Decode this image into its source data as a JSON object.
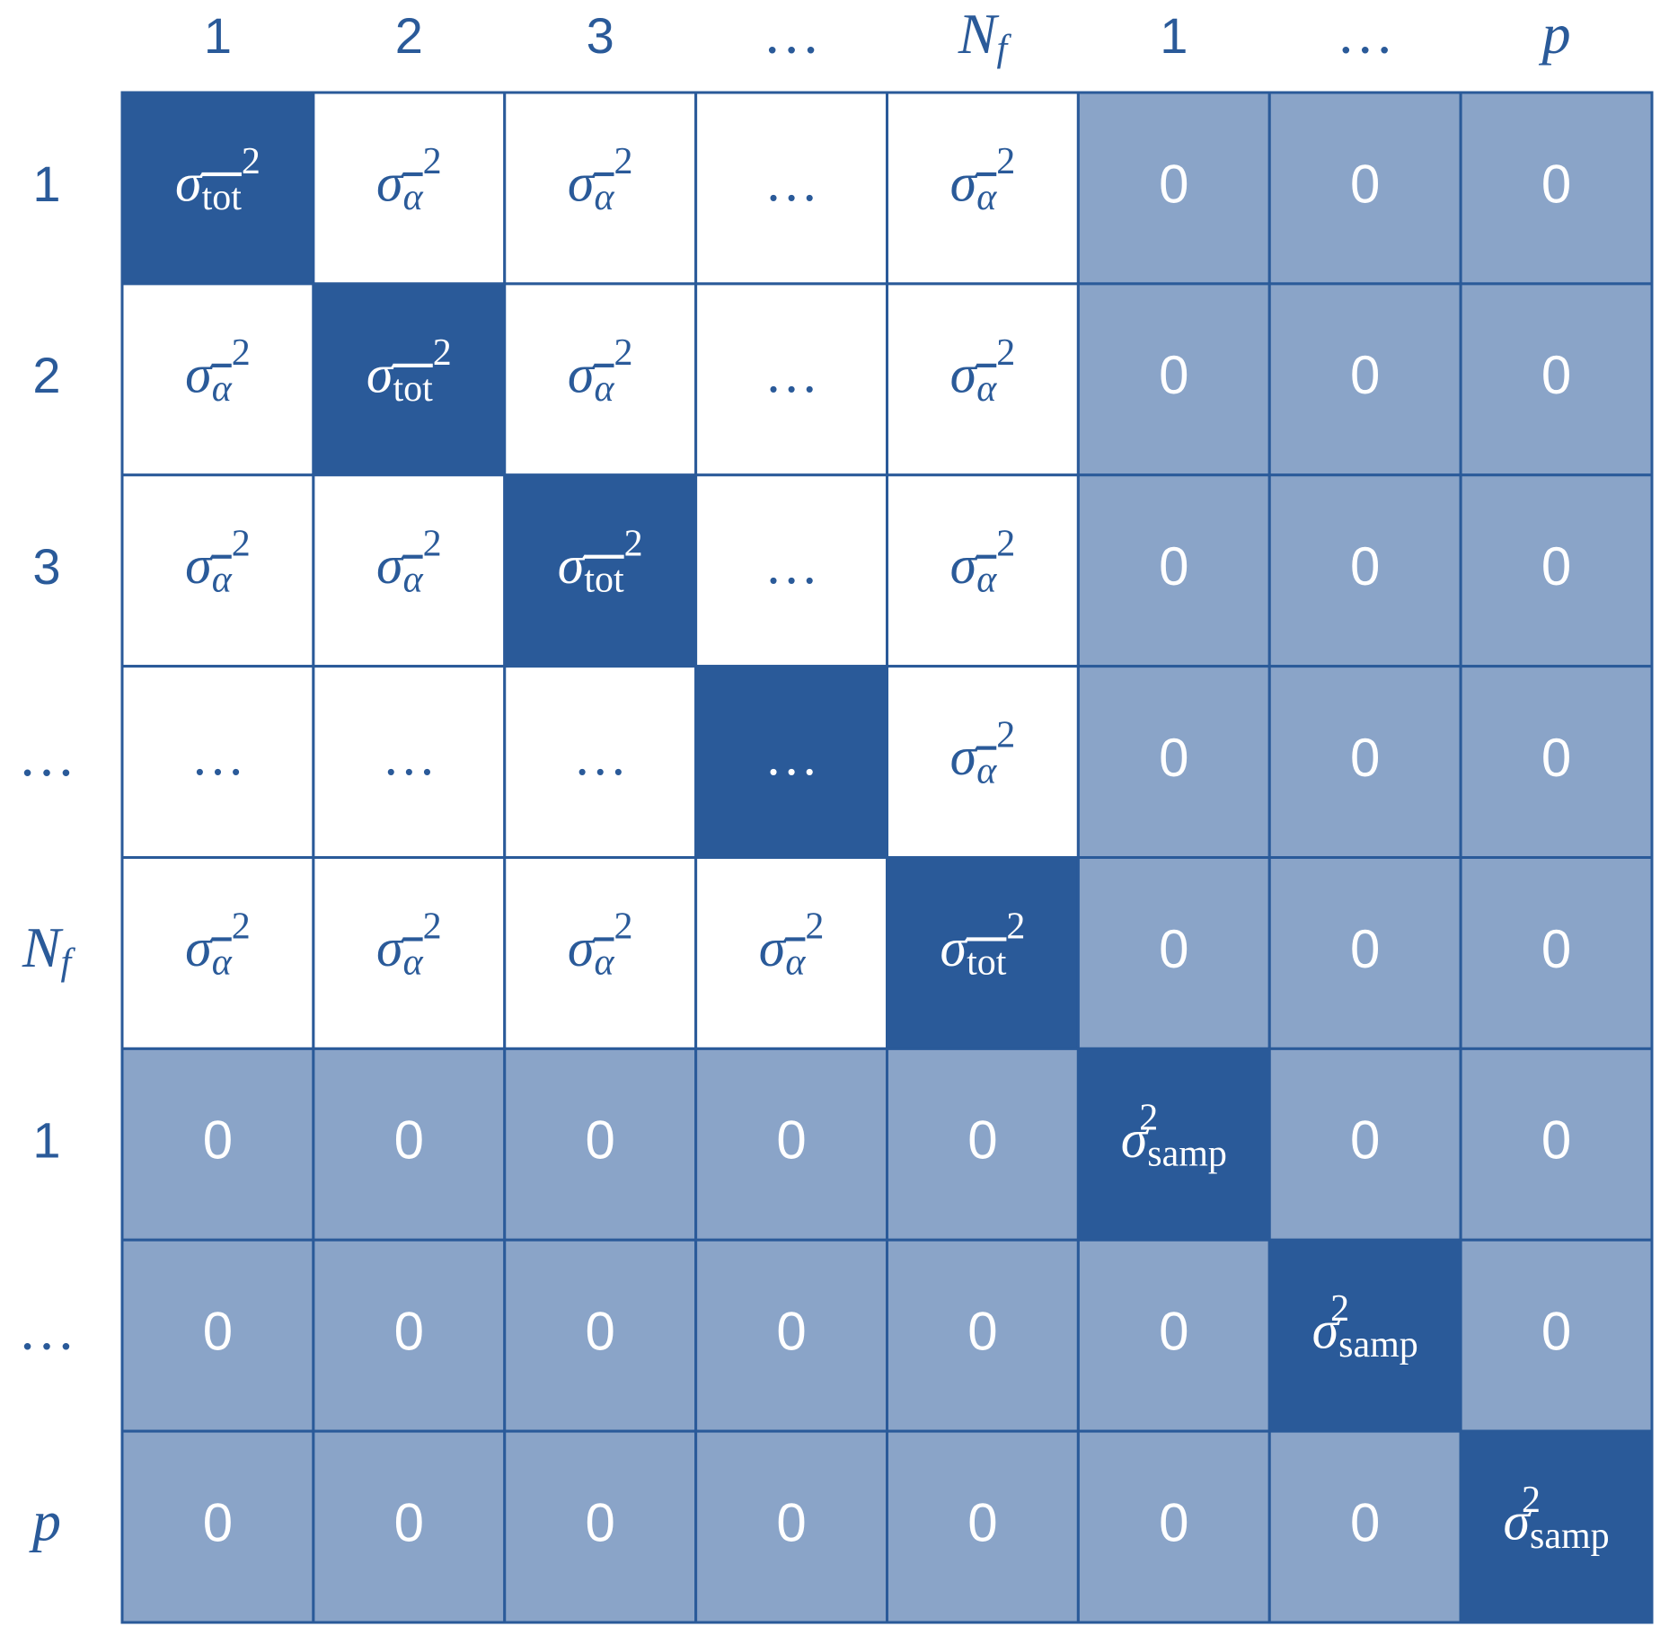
{
  "columns": [
    "1",
    "2",
    "3",
    "…",
    {
      "base": "N",
      "sub": "f"
    },
    "1",
    "…",
    {
      "base": "p"
    }
  ],
  "rows": [
    "1",
    "2",
    "3",
    "…",
    {
      "base": "N",
      "sub": "f"
    },
    "1",
    "…",
    {
      "base": "p"
    }
  ],
  "cells": [
    [
      {
        "base": "σ",
        "sub": "tot",
        "sup": "2",
        "bar": true
      },
      {
        "base": "σ",
        "sub": "α",
        "sup": "2",
        "bar": true
      },
      {
        "base": "σ",
        "sub": "α",
        "sup": "2",
        "bar": true
      },
      "…",
      {
        "base": "σ",
        "sub": "α",
        "sup": "2",
        "bar": true
      },
      "0",
      "0",
      "0"
    ],
    [
      {
        "base": "σ",
        "sub": "α",
        "sup": "2",
        "bar": true
      },
      {
        "base": "σ",
        "sub": "tot",
        "sup": "2",
        "bar": true
      },
      {
        "base": "σ",
        "sub": "α",
        "sup": "2",
        "bar": true
      },
      "…",
      {
        "base": "σ",
        "sub": "α",
        "sup": "2",
        "bar": true
      },
      "0",
      "0",
      "0"
    ],
    [
      {
        "base": "σ",
        "sub": "α",
        "sup": "2",
        "bar": true
      },
      {
        "base": "σ",
        "sub": "α",
        "sup": "2",
        "bar": true
      },
      {
        "base": "σ",
        "sub": "tot",
        "sup": "2",
        "bar": true
      },
      "…",
      {
        "base": "σ",
        "sub": "α",
        "sup": "2",
        "bar": true
      },
      "0",
      "0",
      "0"
    ],
    [
      "…",
      "…",
      "…",
      "…",
      {
        "base": "σ",
        "sub": "α",
        "sup": "2",
        "bar": true
      },
      "0",
      "0",
      "0"
    ],
    [
      {
        "base": "σ",
        "sub": "α",
        "sup": "2",
        "bar": true
      },
      {
        "base": "σ",
        "sub": "α",
        "sup": "2",
        "bar": true
      },
      {
        "base": "σ",
        "sub": "α",
        "sup": "2",
        "bar": true
      },
      {
        "base": "σ",
        "sub": "α",
        "sup": "2",
        "bar": true
      },
      {
        "base": "σ",
        "sub": "tot",
        "sup": "2",
        "bar": true
      },
      "0",
      "0",
      "0"
    ],
    [
      "0",
      "0",
      "0",
      "0",
      "0",
      {
        "base": "σ",
        "sub": "samp",
        "sup": "2"
      },
      "0",
      "0"
    ],
    [
      "0",
      "0",
      "0",
      "0",
      "0",
      "0",
      {
        "base": "σ",
        "sub": "samp",
        "sup": "2"
      },
      "0"
    ],
    [
      "0",
      "0",
      "0",
      "0",
      "0",
      "0",
      "0",
      {
        "base": "σ",
        "sub": "samp",
        "sup": "2"
      }
    ]
  ]
}
